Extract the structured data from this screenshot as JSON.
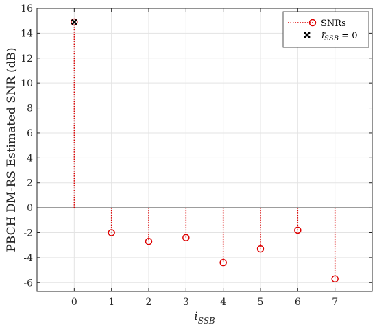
{
  "chart_data": {
    "type": "stem",
    "ylabel": "PBCH DM-RS Estimated SNR (dB)",
    "xlabel": {
      "main": "i",
      "sub": "SSB"
    },
    "x": [
      0,
      1,
      2,
      3,
      4,
      5,
      6,
      7
    ],
    "xlim": [
      -1,
      8
    ],
    "ylim": [
      -6.7,
      16
    ],
    "xticks": [
      0,
      1,
      2,
      3,
      4,
      5,
      6,
      7
    ],
    "yticks": [
      -6,
      -4,
      -2,
      0,
      2,
      4,
      6,
      8,
      10,
      12,
      14,
      16
    ],
    "grid": true,
    "baseline": 0,
    "legend_position": "top-right",
    "series": [
      {
        "name": "SNRs",
        "marker": "circle",
        "line_style": "dotted",
        "color": "#dd0000",
        "values": [
          14.9,
          -2.0,
          -2.7,
          -2.4,
          -4.4,
          -3.3,
          -1.8,
          -5.7
        ]
      },
      {
        "name_parts": {
          "main": "i",
          "sub": "SSB",
          "suffix": " = 0"
        },
        "marker": "x",
        "color": "#000000",
        "points": [
          [
            0,
            14.9
          ]
        ]
      }
    ]
  }
}
